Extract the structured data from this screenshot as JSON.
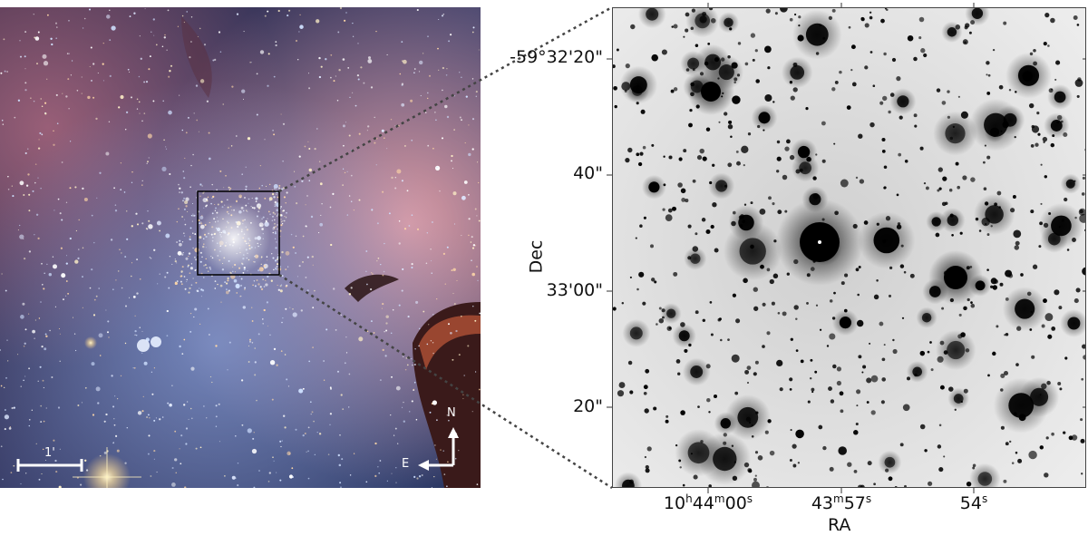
{
  "left_image": {
    "scale_bar_label": "1'",
    "compass_north": "N",
    "compass_east": "E"
  },
  "right_image": {
    "y_ticks": [
      "-59°32'20\"",
      "40\"",
      "33'00\"",
      "20\""
    ],
    "x_ticks": [
      {
        "main": "10",
        "h": "h",
        "m_val": "44",
        "m": "m",
        "s_val": "00",
        "s": "s"
      },
      {
        "main": "43",
        "h": "",
        "m_val": "",
        "m": "m",
        "s_val": "57",
        "s": "s"
      },
      {
        "main": "54",
        "h": "",
        "m_val": "",
        "m": "",
        "s_val": "",
        "s": "s"
      }
    ],
    "ylabel": "Dec",
    "xlabel": "RA"
  },
  "colors": {
    "nebula_pink": "#c8707a",
    "nebula_blue": "#4a5f95",
    "background_dark": "#1a2040",
    "star_black": "#000000",
    "field_gray": "#e6e6e6"
  }
}
